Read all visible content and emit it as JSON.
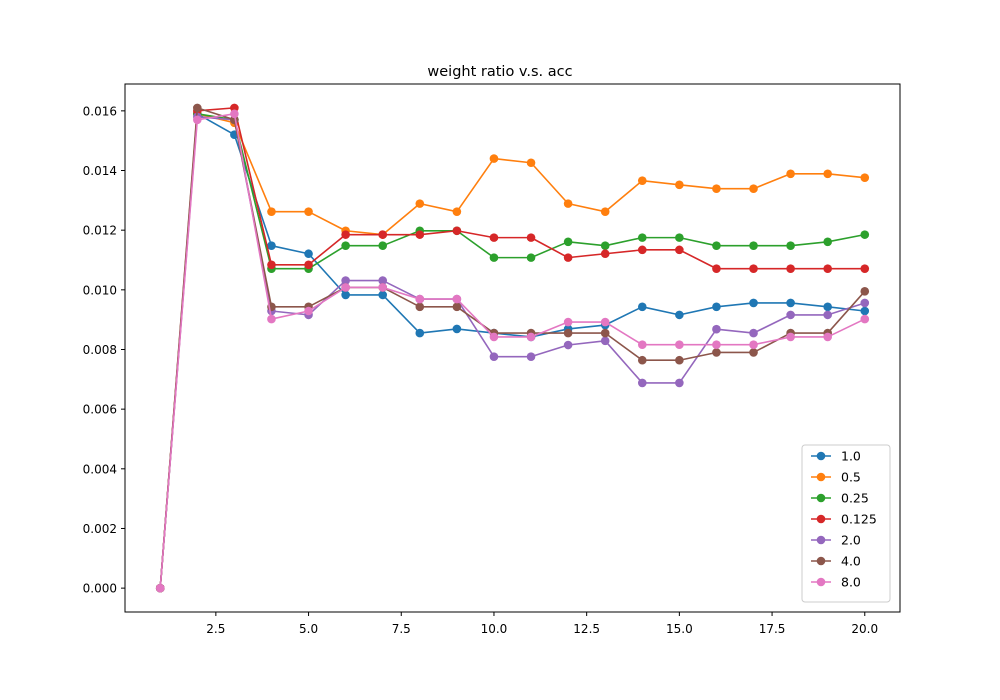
{
  "chart_data": {
    "type": "line",
    "title": "weight ratio v.s. acc",
    "xlabel": "",
    "ylabel": "",
    "xlim": [
      0.05,
      20.95
    ],
    "ylim": [
      -0.0008,
      0.0169
    ],
    "xticks": [
      2.5,
      5.0,
      7.5,
      10.0,
      12.5,
      15.0,
      17.5,
      20.0
    ],
    "xtick_labels": [
      "2.5",
      "5.0",
      "7.5",
      "10.0",
      "12.5",
      "15.0",
      "17.5",
      "20.0"
    ],
    "yticks": [
      0.0,
      0.002,
      0.004,
      0.006,
      0.008,
      0.01,
      0.012,
      0.014,
      0.016
    ],
    "ytick_labels": [
      "0.000",
      "0.002",
      "0.004",
      "0.006",
      "0.008",
      "0.010",
      "0.012",
      "0.014",
      "0.016"
    ],
    "grid": false,
    "legend_position": "lower-right",
    "x": [
      1,
      2,
      3,
      4,
      5,
      6,
      7,
      8,
      9,
      10,
      11,
      12,
      13,
      14,
      15,
      16,
      17,
      18,
      19,
      20
    ],
    "series": [
      {
        "name": "1.0",
        "color": "#1f77b4",
        "values": [
          0.0,
          0.0159,
          0.0152,
          0.01148,
          0.01121,
          0.00983,
          0.00983,
          0.00855,
          0.00869,
          0.00855,
          0.00842,
          0.00869,
          0.00882,
          0.00943,
          0.00916,
          0.00943,
          0.00956,
          0.00956,
          0.00943,
          0.00929
        ]
      },
      {
        "name": "0.5",
        "color": "#ff7f0e",
        "values": [
          0.0,
          0.0159,
          0.0156,
          0.01262,
          0.01262,
          0.01198,
          0.01185,
          0.01289,
          0.01262,
          0.0144,
          0.01426,
          0.01289,
          0.01262,
          0.01366,
          0.01352,
          0.01339,
          0.01339,
          0.01389,
          0.01389,
          0.01376
        ]
      },
      {
        "name": "0.25",
        "color": "#2ca02c",
        "values": [
          0.0,
          0.0159,
          0.0157,
          0.01071,
          0.01071,
          0.01148,
          0.01148,
          0.01198,
          0.01198,
          0.01108,
          0.01108,
          0.01161,
          0.01148,
          0.01175,
          0.01175,
          0.01148,
          0.01148,
          0.01148,
          0.01161,
          0.01185
        ]
      },
      {
        "name": "0.125",
        "color": "#d62728",
        "values": [
          0.0,
          0.016,
          0.0161,
          0.01084,
          0.01084,
          0.01185,
          0.01185,
          0.01185,
          0.01198,
          0.01175,
          0.01175,
          0.01108,
          0.01121,
          0.01134,
          0.01134,
          0.01071,
          0.01071,
          0.01071,
          0.01071,
          0.01071
        ]
      },
      {
        "name": "2.0",
        "color": "#9467bd",
        "values": [
          0.0,
          0.0158,
          0.0157,
          0.00929,
          0.00916,
          0.01031,
          0.01031,
          0.00969,
          0.00969,
          0.00776,
          0.00776,
          0.00815,
          0.00829,
          0.00688,
          0.00688,
          0.00868,
          0.00855,
          0.00916,
          0.00916,
          0.00956
        ]
      },
      {
        "name": "4.0",
        "color": "#8c564b",
        "values": [
          0.0,
          0.0161,
          0.0157,
          0.00943,
          0.00943,
          0.01008,
          0.01008,
          0.00943,
          0.00943,
          0.00855,
          0.00855,
          0.00855,
          0.00855,
          0.00764,
          0.00764,
          0.0079,
          0.0079,
          0.00855,
          0.00855,
          0.00995
        ]
      },
      {
        "name": "8.0",
        "color": "#e377c2",
        "values": [
          0.0,
          0.0157,
          0.0159,
          0.00902,
          0.00929,
          0.01008,
          0.01008,
          0.00969,
          0.00969,
          0.00842,
          0.00842,
          0.00892,
          0.00892,
          0.00816,
          0.00816,
          0.00816,
          0.00816,
          0.00842,
          0.00842,
          0.00902
        ]
      }
    ]
  }
}
